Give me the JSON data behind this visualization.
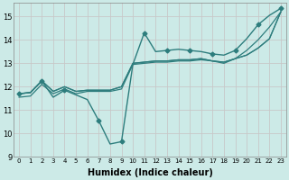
{
  "xlabel": "Humidex (Indice chaleur)",
  "bg_color": "#cceae7",
  "grid_color": "#c8c8c8",
  "line_color": "#2d7d7d",
  "xlim": [
    -0.5,
    23.5
  ],
  "ylim": [
    9,
    15.6
  ],
  "xticks": [
    0,
    1,
    2,
    3,
    4,
    5,
    6,
    7,
    8,
    9,
    10,
    11,
    12,
    13,
    14,
    15,
    16,
    17,
    18,
    19,
    20,
    21,
    22,
    23
  ],
  "yticks": [
    9,
    10,
    11,
    12,
    13,
    14,
    15
  ],
  "series": [
    {
      "y": [
        11.7,
        11.75,
        12.25,
        11.55,
        11.85,
        11.65,
        11.45,
        10.55,
        9.55,
        9.65,
        12.95,
        14.3,
        13.5,
        13.55,
        13.6,
        13.55,
        13.5,
        13.4,
        13.35,
        13.55,
        14.05,
        14.65,
        15.05,
        15.35
      ],
      "marker": true,
      "linewidth": 1.0
    },
    {
      "y": [
        11.7,
        11.75,
        12.25,
        11.8,
        12.0,
        11.8,
        11.85,
        11.85,
        11.85,
        12.0,
        13.0,
        13.05,
        13.1,
        13.1,
        13.15,
        13.15,
        13.2,
        13.1,
        13.05,
        13.2,
        13.55,
        14.0,
        14.55,
        15.2
      ],
      "marker": false,
      "linewidth": 0.9
    },
    {
      "y": [
        11.7,
        11.75,
        12.25,
        11.8,
        12.0,
        11.8,
        11.85,
        11.85,
        11.85,
        12.0,
        13.0,
        13.05,
        13.1,
        13.1,
        13.15,
        13.15,
        13.2,
        13.1,
        13.05,
        13.2,
        13.35,
        13.65,
        14.05,
        15.2
      ],
      "marker": false,
      "linewidth": 0.9
    },
    {
      "y": [
        11.55,
        11.6,
        12.1,
        11.7,
        11.9,
        11.7,
        11.8,
        11.8,
        11.8,
        11.9,
        12.95,
        13.0,
        13.05,
        13.05,
        13.1,
        13.1,
        13.15,
        13.1,
        13.0,
        13.2,
        13.35,
        13.65,
        14.05,
        15.2
      ],
      "marker": false,
      "linewidth": 0.9
    }
  ]
}
